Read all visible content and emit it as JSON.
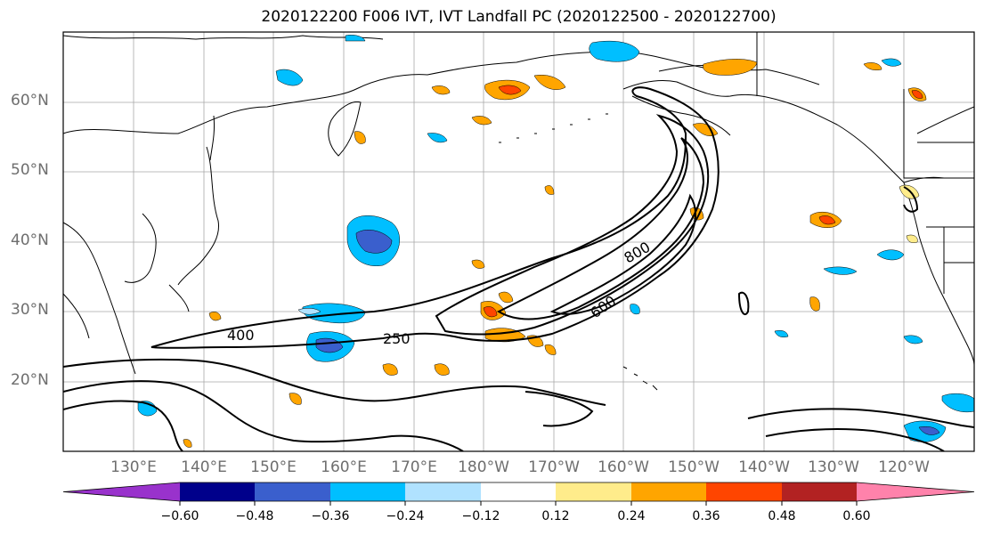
{
  "title": "2020122200 F006 IVT, IVT Landfall PC (2020122500 - 2020122700)",
  "lat_labels": [
    "60°N",
    "50°N",
    "40°N",
    "30°N",
    "20°N"
  ],
  "lon_labels": [
    "130°E",
    "140°E",
    "150°E",
    "160°E",
    "170°E",
    "180°W",
    "170°W",
    "160°W",
    "150°W",
    "140°W",
    "130°W",
    "120°W"
  ],
  "contour_labels": [
    "250",
    "400",
    "600",
    "800"
  ],
  "colorbar": {
    "ticks": [
      "−0.60",
      "−0.48",
      "−0.36",
      "−0.24",
      "−0.12",
      "0.12",
      "0.24",
      "0.36",
      "0.48",
      "0.60"
    ],
    "colors": [
      "#9932cc",
      "#00008b",
      "#3a5fcd",
      "#00bfff",
      "#b0e2ff",
      "#ffffff",
      "#ffec8b",
      "#ffa500",
      "#ff4500",
      "#b22222",
      "#ff82ab"
    ]
  }
}
